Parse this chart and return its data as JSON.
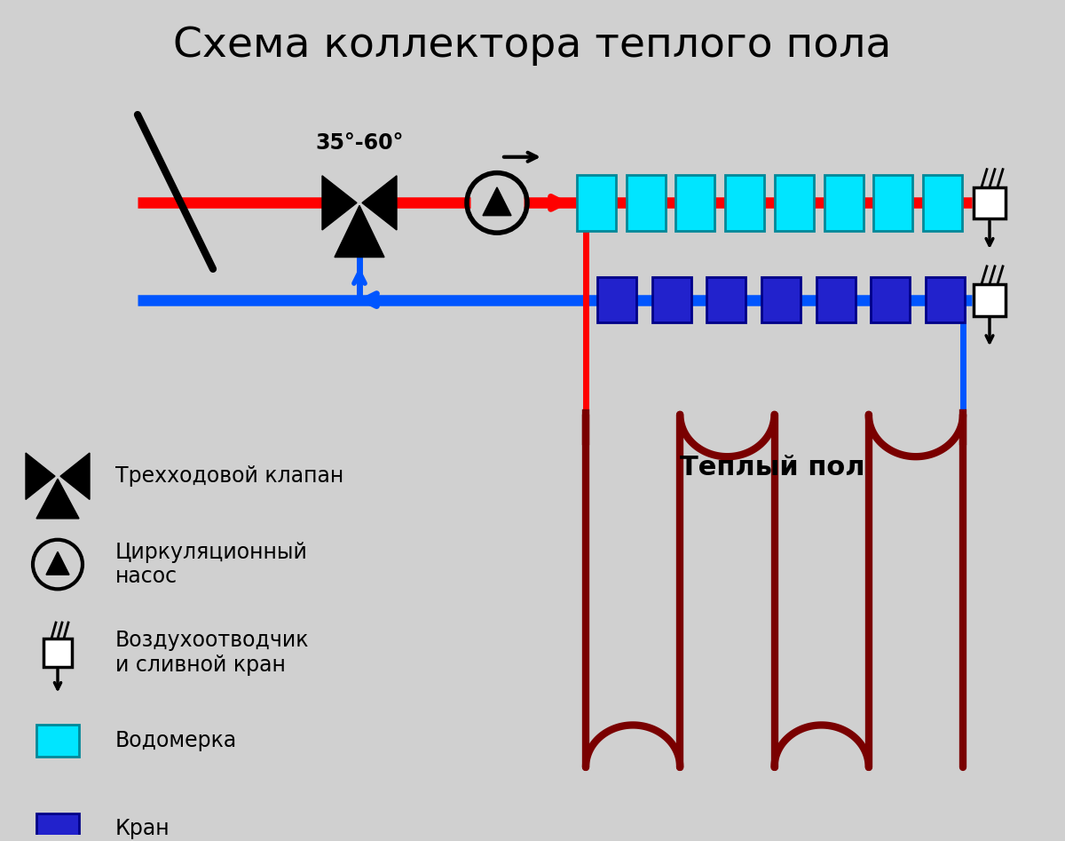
{
  "title": "Схема коллектора теплого пола",
  "bg_color": "#d0d0d0",
  "red_color": "#ff0000",
  "blue_color": "#0055ff",
  "dark_red_color": "#7a0000",
  "black_color": "#000000",
  "cyan_color": "#00e5ff",
  "dark_blue_color": "#2222cc",
  "temp_label": "35°-60°",
  "floor_label": "Теплый пол"
}
